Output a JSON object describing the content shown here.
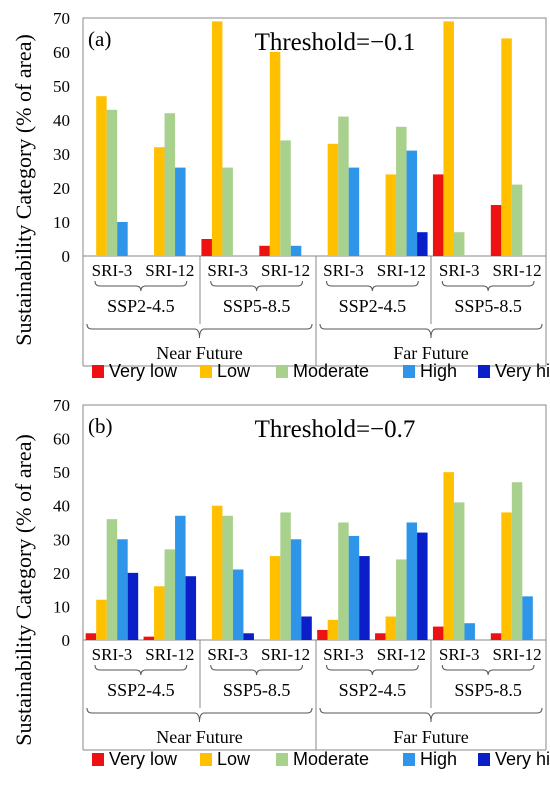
{
  "figure": {
    "ylabel": "Sustainability Category (% of area)",
    "legend": [
      "Very low",
      "Low",
      "Moderate",
      "High",
      "Very high"
    ]
  },
  "colors": {
    "Very low": "#ee1111",
    "Low": "#ffc000",
    "Moderate": "#a9d18e",
    "High": "#2e95e8",
    "Very high": "#0a1fc8"
  },
  "chart_data": [
    {
      "type": "bar",
      "panel_label": "(a)",
      "title": "Threshold=−0.1",
      "ylim": [
        0,
        70
      ],
      "yticks": [
        0,
        10,
        20,
        30,
        40,
        50,
        60,
        70
      ],
      "grid": false,
      "legend_position": "bottom",
      "categories": [
        "SRI-3",
        "SRI-12",
        "SRI-3",
        "SRI-12",
        "SRI-3",
        "SRI-12",
        "SRI-3",
        "SRI-12"
      ],
      "scenario_labels": [
        "SSP2-4.5",
        "SSP5-8.5",
        "SSP2-4.5",
        "SSP5-8.5"
      ],
      "period_labels": [
        "Near Future",
        "Far Future"
      ],
      "series": [
        {
          "name": "Very low",
          "values": [
            0,
            0,
            5,
            3,
            0,
            0,
            24,
            15
          ]
        },
        {
          "name": "Low",
          "values": [
            47,
            32,
            69,
            60,
            33,
            24,
            69,
            64
          ]
        },
        {
          "name": "Moderate",
          "values": [
            43,
            42,
            26,
            34,
            41,
            38,
            7,
            21
          ]
        },
        {
          "name": "High",
          "values": [
            10,
            26,
            0,
            3,
            26,
            31,
            0,
            0
          ]
        },
        {
          "name": "Very high",
          "values": [
            0,
            0,
            0,
            0,
            0,
            7,
            0,
            0
          ]
        }
      ]
    },
    {
      "type": "bar",
      "panel_label": "(b)",
      "title": "Threshold=−0.7",
      "ylim": [
        0,
        70
      ],
      "yticks": [
        0,
        10,
        20,
        30,
        40,
        50,
        60,
        70
      ],
      "grid": false,
      "legend_position": "bottom",
      "categories": [
        "SRI-3",
        "SRI-12",
        "SRI-3",
        "SRI-12",
        "SRI-3",
        "SRI-12",
        "SRI-3",
        "SRI-12"
      ],
      "scenario_labels": [
        "SSP2-4.5",
        "SSP5-8.5",
        "SSP2-4.5",
        "SSP5-8.5"
      ],
      "period_labels": [
        "Near Future",
        "Far Future"
      ],
      "series": [
        {
          "name": "Very low",
          "values": [
            2,
            1,
            0,
            0,
            3,
            2,
            4,
            2
          ]
        },
        {
          "name": "Low",
          "values": [
            12,
            16,
            40,
            25,
            6,
            7,
            50,
            38
          ]
        },
        {
          "name": "Moderate",
          "values": [
            36,
            27,
            37,
            38,
            35,
            24,
            41,
            47
          ]
        },
        {
          "name": "High",
          "values": [
            30,
            37,
            21,
            30,
            31,
            35,
            5,
            13
          ]
        },
        {
          "name": "Very high",
          "values": [
            20,
            19,
            2,
            7,
            25,
            32,
            0,
            0
          ]
        }
      ]
    }
  ]
}
